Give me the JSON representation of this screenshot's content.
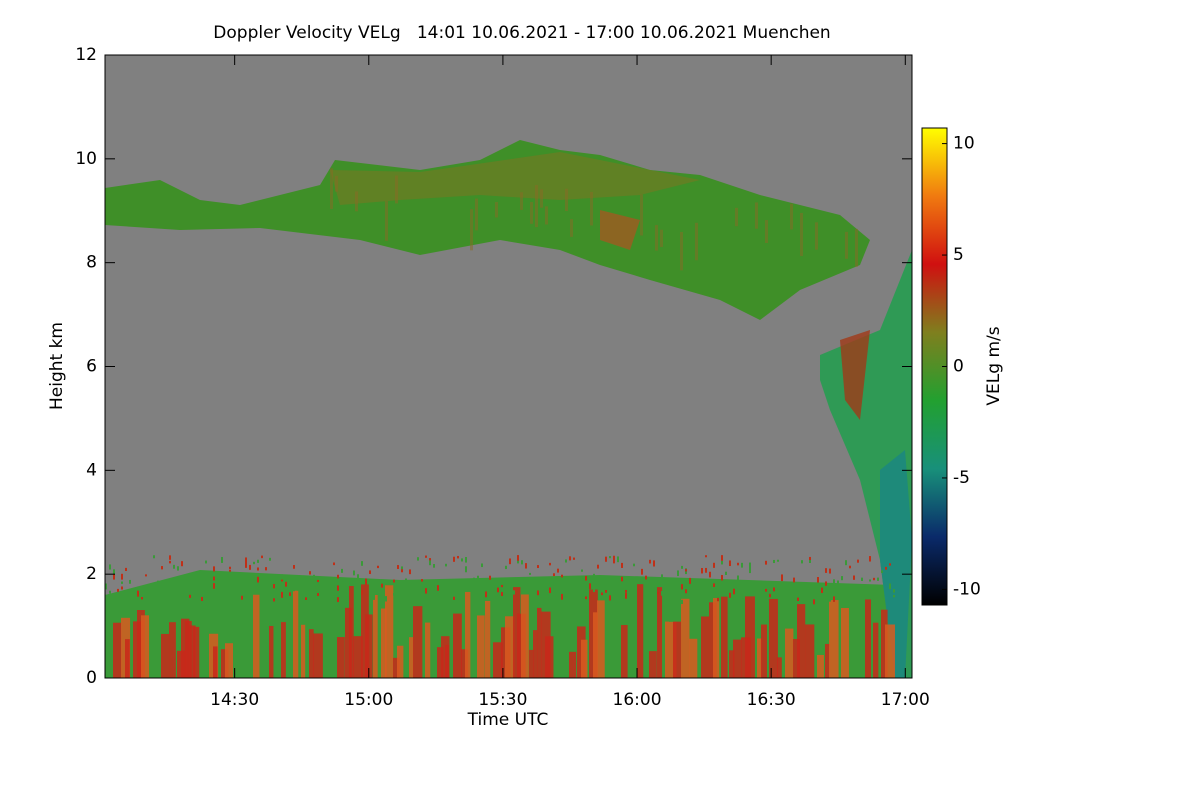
{
  "chart_data": {
    "type": "heatmap",
    "title": "Doppler Velocity VELg   14:01 10.06.2021 - 17:00 10.06.2021 Muenchen",
    "x_label": "Time UTC",
    "y_label": "Height km",
    "colorbar_label": "VELg m/s",
    "xlim": [
      841,
      1021.5
    ],
    "xticks": [
      {
        "value": 870,
        "label": "14:30"
      },
      {
        "value": 900,
        "label": "15:00"
      },
      {
        "value": 930,
        "label": "15:30"
      },
      {
        "value": 960,
        "label": "16:00"
      },
      {
        "value": 990,
        "label": "16:30"
      },
      {
        "value": 1020,
        "label": "17:00"
      }
    ],
    "ylim": [
      0,
      12
    ],
    "yticks": [
      0,
      2,
      4,
      6,
      8,
      10,
      12
    ],
    "clim": [
      -10.7,
      10.7
    ],
    "cticks": [
      -10,
      -5,
      0,
      5,
      10
    ],
    "colormap": [
      "#000000",
      "#0a2a6a",
      "#18907a",
      "#22a030",
      "#7f7f1e",
      "#d01010",
      "#f07a10",
      "#ffff00"
    ],
    "background": "#808080"
  }
}
